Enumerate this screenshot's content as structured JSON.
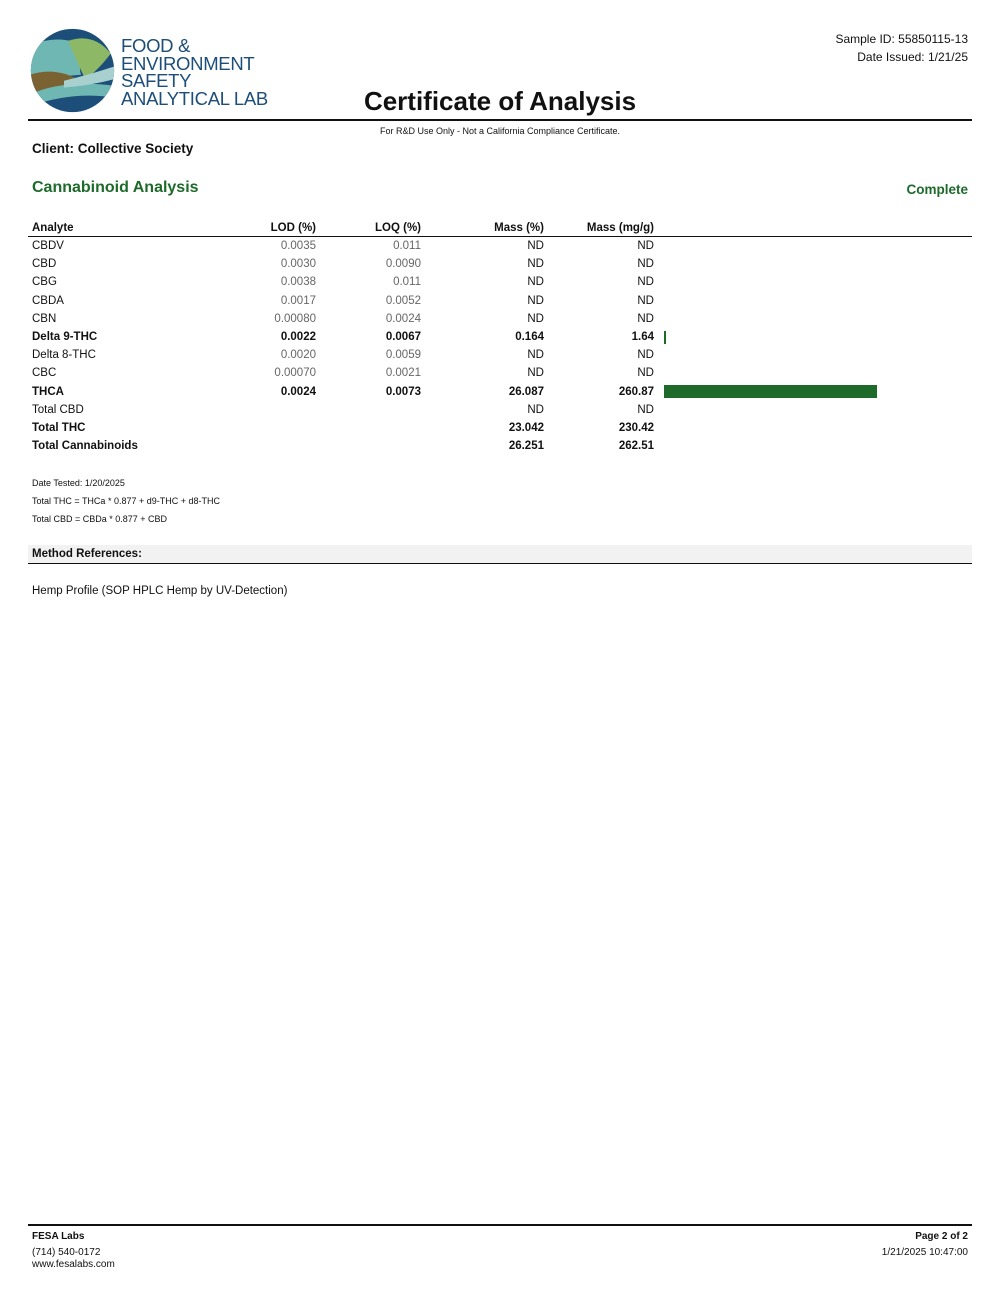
{
  "header": {
    "logo_text": [
      "FOOD &",
      "ENVIRONMENT",
      "SAFETY",
      "ANALYTICAL LAB"
    ],
    "sample_id": "Sample ID: 55850115-13",
    "date_issued": "Date Issued: 1/21/25",
    "title": "Certificate of Analysis",
    "note": "For R&D Use Only - Not a California Compliance Certificate.",
    "client": "Client: Collective Society"
  },
  "section": {
    "title": "Cannabinoid Analysis",
    "status": "Complete",
    "accent": "#1e6a2a"
  },
  "table": {
    "columns": [
      "Analyte",
      "LOD (%)",
      "LOQ (%)",
      "Mass (%)",
      "Mass (mg/g)"
    ],
    "rows": [
      {
        "analyte": "CBDV",
        "lod": "0.0035",
        "loq": "0.011",
        "mass_pct": "ND",
        "mass_mgg": "ND",
        "bold": false,
        "bar": 0
      },
      {
        "analyte": "CBD",
        "lod": "0.0030",
        "loq": "0.0090",
        "mass_pct": "ND",
        "mass_mgg": "ND",
        "bold": false,
        "bar": 0
      },
      {
        "analyte": "CBG",
        "lod": "0.0038",
        "loq": "0.011",
        "mass_pct": "ND",
        "mass_mgg": "ND",
        "bold": false,
        "bar": 0
      },
      {
        "analyte": "CBDA",
        "lod": "0.0017",
        "loq": "0.0052",
        "mass_pct": "ND",
        "mass_mgg": "ND",
        "bold": false,
        "bar": 0
      },
      {
        "analyte": "CBN",
        "lod": "0.00080",
        "loq": "0.0024",
        "mass_pct": "ND",
        "mass_mgg": "ND",
        "bold": false,
        "bar": 0
      },
      {
        "analyte": "Delta 9-THC",
        "lod": "0.0022",
        "loq": "0.0067",
        "mass_pct": "0.164",
        "mass_mgg": "1.64",
        "bold": true,
        "bar": 1.64
      },
      {
        "analyte": "Delta 8-THC",
        "lod": "0.0020",
        "loq": "0.0059",
        "mass_pct": "ND",
        "mass_mgg": "ND",
        "bold": false,
        "bar": 0
      },
      {
        "analyte": "CBC",
        "lod": "0.00070",
        "loq": "0.0021",
        "mass_pct": "ND",
        "mass_mgg": "ND",
        "bold": false,
        "bar": 0
      },
      {
        "analyte": "THCA",
        "lod": "0.0024",
        "loq": "0.0073",
        "mass_pct": "26.087",
        "mass_mgg": "260.87",
        "bold": true,
        "bar": 260.87
      },
      {
        "analyte": "Total CBD",
        "lod": "",
        "loq": "",
        "mass_pct": "ND",
        "mass_mgg": "ND",
        "bold": false,
        "bar": 0
      },
      {
        "analyte": "Total THC",
        "lod": "",
        "loq": "",
        "mass_pct": "23.042",
        "mass_mgg": "230.42",
        "bold": true,
        "bar": 0
      },
      {
        "analyte": "Total Cannabinoids",
        "lod": "",
        "loq": "",
        "mass_pct": "26.251",
        "mass_mgg": "262.51",
        "bold": true,
        "bar": 0
      }
    ]
  },
  "notes": {
    "date_tested": "Date Tested: 1/20/2025",
    "total_thc": "Total THC = THCa * 0.877 + d9-THC + d8-THC",
    "total_cbd": "Total CBD = CBDa * 0.877 + CBD"
  },
  "method": {
    "heading": "Method References:",
    "reference": "Hemp Profile (SOP HPLC Hemp by UV-Detection)"
  },
  "footer": {
    "company": "FESA Labs",
    "phone": "(714) 540-0172",
    "website": "www.fesalabs.com",
    "page": "Page 2 of 2",
    "timestamp": "1/21/2025 10:47:00"
  }
}
